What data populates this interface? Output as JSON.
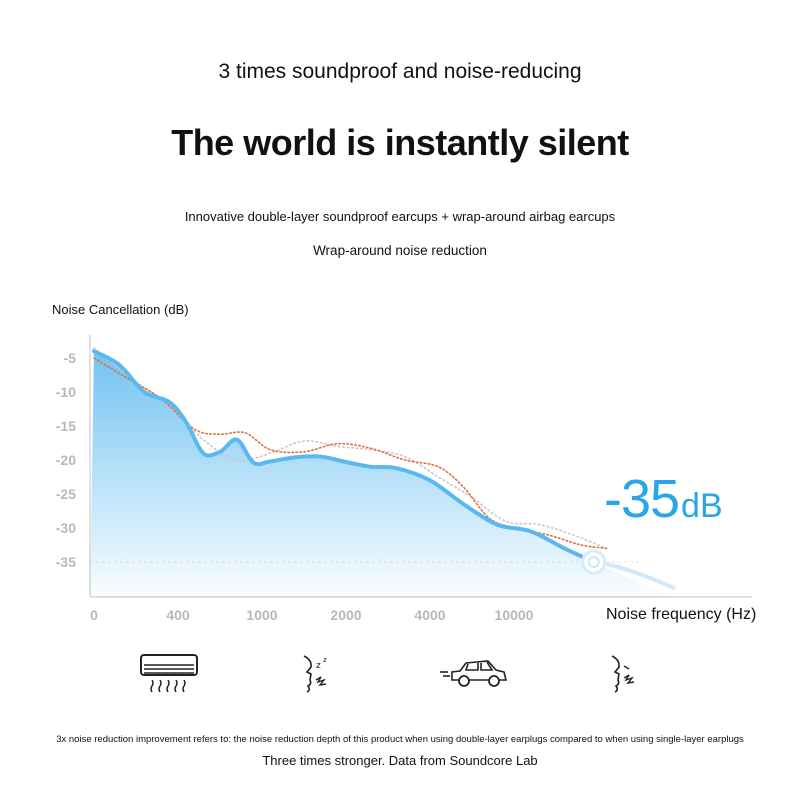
{
  "header": {
    "subtitle": "3 times soundproof and noise-reducing",
    "headline": "The world is instantly silent",
    "tagline_1": "Innovative double-layer soundproof earcups + wrap-around airbag earcups",
    "tagline_2": "Wrap-around noise reduction"
  },
  "highlight": {
    "value": "-35",
    "unit": "dB"
  },
  "footer": {
    "footnote": "3x noise reduction improvement refers to: the noise reduction depth of this product when using double-layer earplugs compared to when using single-layer earplugs",
    "source": "Three times stronger. Data from Soundcore Lab"
  },
  "icons": [
    "air-conditioner-icon",
    "snoring-person-icon",
    "car-icon",
    "talking-person-icon"
  ],
  "colors": {
    "main_series": "#5ab8f0",
    "series_2": "#e0703a",
    "series_3": "#c8c8c8",
    "highlight": "#2aa4ea"
  },
  "chart_data": {
    "type": "area",
    "xlabel": "Noise frequency (Hz)",
    "ylabel": "Noise Cancellation (dB)",
    "categories": [
      "0",
      "400",
      "1000",
      "2000",
      "4000",
      "10000"
    ],
    "yticks": [
      -5,
      -10,
      -15,
      -20,
      -25,
      -30,
      -35
    ],
    "ylim": [
      -40,
      -2
    ],
    "xlim": [
      0,
      6.3
    ],
    "series": [
      {
        "x": [
          0,
          0.3,
          0.6,
          0.9,
          1.1,
          1.3,
          1.5,
          1.7,
          1.9,
          2.1,
          2.4,
          2.7,
          3.0,
          3.3,
          3.6,
          4.0,
          4.4,
          4.8,
          5.2,
          5.6,
          5.95
        ],
        "values": [
          -4,
          -6,
          -10,
          -11.5,
          -14.5,
          -19,
          -18.8,
          -17,
          -20.4,
          -20.2,
          -19.6,
          -19.5,
          -20.3,
          -21,
          -21.2,
          -23,
          -26.5,
          -29.5,
          -30.5,
          -33,
          -35
        ]
      },
      {
        "x": [
          0,
          0.4,
          0.8,
          1.2,
          1.5,
          1.8,
          2.1,
          2.5,
          2.9,
          3.3,
          3.7,
          4.1,
          4.4,
          4.7,
          5.0,
          5.4,
          5.8,
          6.1
        ],
        "values": [
          -5,
          -8,
          -11,
          -15.5,
          -16.2,
          -16,
          -18.5,
          -18.8,
          -17.6,
          -18.3,
          -20,
          -21,
          -24,
          -28.5,
          -30,
          -31,
          -32.5,
          -33
        ]
      },
      {
        "x": [
          0,
          0.5,
          0.9,
          1.3,
          1.7,
          2.1,
          2.5,
          2.9,
          3.3,
          3.7,
          4.1,
          4.5,
          4.9,
          5.3,
          5.7,
          6.1
        ],
        "values": [
          -3.5,
          -8.5,
          -12,
          -17,
          -20,
          -19,
          -17.2,
          -18,
          -18.5,
          -19.5,
          -22.5,
          -25.5,
          -29,
          -29.5,
          -31,
          -33
        ]
      }
    ],
    "marker": {
      "x": 5.95,
      "y": -35
    }
  }
}
